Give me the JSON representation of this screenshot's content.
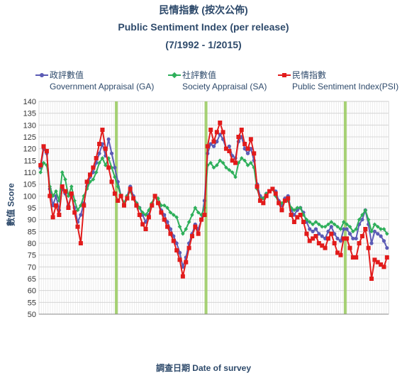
{
  "titles": {
    "line1": "民情指數 (按次公佈)",
    "line2": "Public Sentiment Index (per release)",
    "line3": "(7/1992 - 1/2015)"
  },
  "legend": [
    {
      "zh": "政評數值",
      "en": "Government Appraisal (GA)",
      "color": "#5b5bb5",
      "marker": "circle"
    },
    {
      "zh": "社評數值",
      "en": "Society Appraisal (SA)",
      "color": "#2eaf5a",
      "marker": "diamond"
    },
    {
      "zh": "民情指數",
      "en": "Public Sentiment Index(PSI)",
      "color": "#e21b1b",
      "marker": "square"
    }
  ],
  "chart_data": {
    "type": "line",
    "title": "Public Sentiment Index (per release)",
    "subtitle": "(7/1992 - 1/2015)",
    "xlabel": "調查日期 Date of survey",
    "ylabel": "數值 Score",
    "ylim": [
      50,
      140
    ],
    "yticks": [
      50,
      55,
      60,
      65,
      70,
      75,
      80,
      85,
      90,
      95,
      100,
      105,
      110,
      115,
      120,
      125,
      130,
      135,
      140
    ],
    "xlim": [
      1992.5,
      2015.1
    ],
    "grid": true,
    "legend_position": "top",
    "reference_lines_x": [
      1997.5,
      2003.3,
      2012.3
    ],
    "reference_line_color": "#9ccc65",
    "series": [
      {
        "name": "Government Appraisal (GA)",
        "color": "#5b5bb5",
        "x": [
          1992.6,
          1992.8,
          1993.0,
          1993.2,
          1993.4,
          1993.6,
          1993.8,
          1994.0,
          1994.2,
          1994.4,
          1994.6,
          1994.8,
          1995.0,
          1995.2,
          1995.4,
          1995.6,
          1995.8,
          1996.0,
          1996.2,
          1996.4,
          1996.6,
          1996.8,
          1997.0,
          1997.2,
          1997.4,
          1997.6,
          1997.8,
          1998.0,
          1998.2,
          1998.4,
          1998.6,
          1998.8,
          1999.0,
          1999.2,
          1999.4,
          1999.6,
          1999.8,
          2000.0,
          2000.2,
          2000.4,
          2000.6,
          2000.8,
          2001.0,
          2001.2,
          2001.4,
          2001.6,
          2001.8,
          2002.0,
          2002.2,
          2002.4,
          2002.6,
          2002.8,
          2003.0,
          2003.2,
          2003.4,
          2003.6,
          2003.8,
          2004.0,
          2004.2,
          2004.4,
          2004.6,
          2004.8,
          2005.0,
          2005.2,
          2005.4,
          2005.6,
          2005.8,
          2006.0,
          2006.2,
          2006.4,
          2006.6,
          2006.8,
          2007.0,
          2007.2,
          2007.4,
          2007.6,
          2007.8,
          2008.0,
          2008.2,
          2008.4,
          2008.6,
          2008.8,
          2009.0,
          2009.2,
          2009.4,
          2009.6,
          2009.8,
          2010.0,
          2010.2,
          2010.4,
          2010.6,
          2010.8,
          2011.0,
          2011.2,
          2011.4,
          2011.6,
          2011.8,
          2012.0,
          2012.2,
          2012.4,
          2012.6,
          2012.8,
          2013.0,
          2013.2,
          2013.4,
          2013.6,
          2013.8,
          2014.0,
          2014.2,
          2014.4,
          2014.6,
          2014.8,
          2015.0
        ],
        "values": [
          112,
          120,
          118,
          103,
          96,
          100,
          94,
          103,
          101,
          96,
          100,
          95,
          89,
          92,
          97,
          104,
          108,
          110,
          114,
          118,
          122,
          117,
          124,
          118,
          112,
          106,
          100,
          97,
          100,
          104,
          100,
          97,
          95,
          92,
          89,
          92,
          96,
          100,
          97,
          94,
          92,
          89,
          86,
          83,
          80,
          76,
          70,
          74,
          80,
          84,
          88,
          86,
          90,
          98,
          118,
          122,
          121,
          123,
          126,
          124,
          120,
          121,
          117,
          116,
          123,
          125,
          120,
          118,
          120,
          115,
          105,
          100,
          99,
          101,
          102,
          103,
          102,
          98,
          96,
          99,
          100,
          94,
          92,
          94,
          95,
          93,
          89,
          86,
          85,
          86,
          84,
          83,
          82,
          85,
          87,
          84,
          82,
          81,
          86,
          86,
          84,
          82,
          82,
          88,
          90,
          94,
          88,
          80,
          85,
          84,
          83,
          81,
          78
        ]
      },
      {
        "name": "Society Appraisal (SA)",
        "color": "#2eaf5a",
        "x": [
          1992.6,
          1992.8,
          1993.0,
          1993.2,
          1993.4,
          1993.6,
          1993.8,
          1994.0,
          1994.2,
          1994.4,
          1994.6,
          1994.8,
          1995.0,
          1995.2,
          1995.4,
          1995.6,
          1995.8,
          1996.0,
          1996.2,
          1996.4,
          1996.6,
          1996.8,
          1997.0,
          1997.2,
          1997.4,
          1997.6,
          1997.8,
          1998.0,
          1998.2,
          1998.4,
          1998.6,
          1998.8,
          1999.0,
          1999.2,
          1999.4,
          1999.6,
          1999.8,
          2000.0,
          2000.2,
          2000.4,
          2000.6,
          2000.8,
          2001.0,
          2001.2,
          2001.4,
          2001.6,
          2001.8,
          2002.0,
          2002.2,
          2002.4,
          2002.6,
          2002.8,
          2003.0,
          2003.2,
          2003.4,
          2003.6,
          2003.8,
          2004.0,
          2004.2,
          2004.4,
          2004.6,
          2004.8,
          2005.0,
          2005.2,
          2005.4,
          2005.6,
          2005.8,
          2006.0,
          2006.2,
          2006.4,
          2006.6,
          2006.8,
          2007.0,
          2007.2,
          2007.4,
          2007.6,
          2007.8,
          2008.0,
          2008.2,
          2008.4,
          2008.6,
          2008.8,
          2009.0,
          2009.2,
          2009.4,
          2009.6,
          2009.8,
          2010.0,
          2010.2,
          2010.4,
          2010.6,
          2010.8,
          2011.0,
          2011.2,
          2011.4,
          2011.6,
          2011.8,
          2012.0,
          2012.2,
          2012.4,
          2012.6,
          2012.8,
          2013.0,
          2013.2,
          2013.4,
          2013.6,
          2013.8,
          2014.0,
          2014.2,
          2014.4,
          2014.6,
          2014.8,
          2015.0
        ],
        "values": [
          110,
          114,
          113,
          104,
          100,
          102,
          98,
          110,
          107,
          100,
          104,
          98,
          94,
          96,
          100,
          103,
          106,
          107,
          110,
          114,
          116,
          113,
          116,
          112,
          108,
          104,
          100,
          97,
          100,
          102,
          99,
          97,
          95,
          93,
          92,
          94,
          97,
          100,
          99,
          96,
          96,
          95,
          93,
          92,
          91,
          87,
          84,
          86,
          89,
          92,
          95,
          93,
          92,
          95,
          113,
          114,
          112,
          113,
          115,
          114,
          112,
          111,
          110,
          108,
          114,
          116,
          115,
          113,
          114,
          112,
          103,
          99,
          99,
          101,
          102,
          103,
          100,
          97,
          97,
          98,
          98,
          95,
          94,
          95,
          95,
          92,
          90,
          89,
          88,
          89,
          88,
          87,
          87,
          88,
          89,
          88,
          87,
          86,
          89,
          88,
          87,
          85,
          86,
          90,
          92,
          94,
          90,
          85,
          88,
          87,
          86,
          86,
          84
        ]
      },
      {
        "name": "Public Sentiment Index(PSI)",
        "color": "#e21b1b",
        "x": [
          1992.6,
          1992.8,
          1993.0,
          1993.2,
          1993.4,
          1993.6,
          1993.8,
          1994.0,
          1994.2,
          1994.4,
          1994.6,
          1994.8,
          1995.0,
          1995.2,
          1995.4,
          1995.6,
          1995.8,
          1996.0,
          1996.2,
          1996.4,
          1996.6,
          1996.8,
          1997.0,
          1997.2,
          1997.4,
          1997.6,
          1997.8,
          1998.0,
          1998.2,
          1998.4,
          1998.6,
          1998.8,
          1999.0,
          1999.2,
          1999.4,
          1999.6,
          1999.8,
          2000.0,
          2000.2,
          2000.4,
          2000.6,
          2000.8,
          2001.0,
          2001.2,
          2001.4,
          2001.6,
          2001.8,
          2002.0,
          2002.2,
          2002.4,
          2002.6,
          2002.8,
          2003.0,
          2003.2,
          2003.4,
          2003.6,
          2003.8,
          2004.0,
          2004.2,
          2004.4,
          2004.6,
          2004.8,
          2005.0,
          2005.2,
          2005.4,
          2005.6,
          2005.8,
          2006.0,
          2006.2,
          2006.4,
          2006.6,
          2006.8,
          2007.0,
          2007.2,
          2007.4,
          2007.6,
          2007.8,
          2008.0,
          2008.2,
          2008.4,
          2008.6,
          2008.8,
          2009.0,
          2009.2,
          2009.4,
          2009.6,
          2009.8,
          2010.0,
          2010.2,
          2010.4,
          2010.6,
          2010.8,
          2011.0,
          2011.2,
          2011.4,
          2011.6,
          2011.8,
          2012.0,
          2012.2,
          2012.4,
          2012.6,
          2012.8,
          2013.0,
          2013.2,
          2013.4,
          2013.6,
          2013.8,
          2014.0,
          2014.2,
          2014.4,
          2014.6,
          2014.8,
          2015.0
        ],
        "values": [
          113,
          121,
          119,
          100,
          91,
          96,
          92,
          104,
          102,
          95,
          101,
          93,
          87,
          80,
          96,
          106,
          109,
          112,
          116,
          122,
          128,
          120,
          112,
          106,
          101,
          98,
          100,
          96,
          99,
          103,
          99,
          96,
          92,
          88,
          86,
          91,
          96,
          100,
          97,
          93,
          90,
          87,
          84,
          81,
          77,
          73,
          66,
          72,
          78,
          83,
          87,
          84,
          90,
          92,
          121,
          128,
          123,
          127,
          131,
          127,
          120,
          119,
          115,
          114,
          125,
          128,
          122,
          120,
          124,
          118,
          104,
          98,
          97,
          100,
          102,
          103,
          101,
          97,
          94,
          98,
          99,
          92,
          89,
          91,
          92,
          89,
          84,
          81,
          82,
          83,
          80,
          79,
          78,
          82,
          84,
          80,
          76,
          75,
          82,
          82,
          78,
          74,
          74,
          80,
          83,
          86,
          78,
          65,
          73,
          72,
          71,
          70,
          74
        ]
      }
    ]
  },
  "axis_titles": {
    "x": "調查日期 Date of survey",
    "y": "數值 Score"
  }
}
